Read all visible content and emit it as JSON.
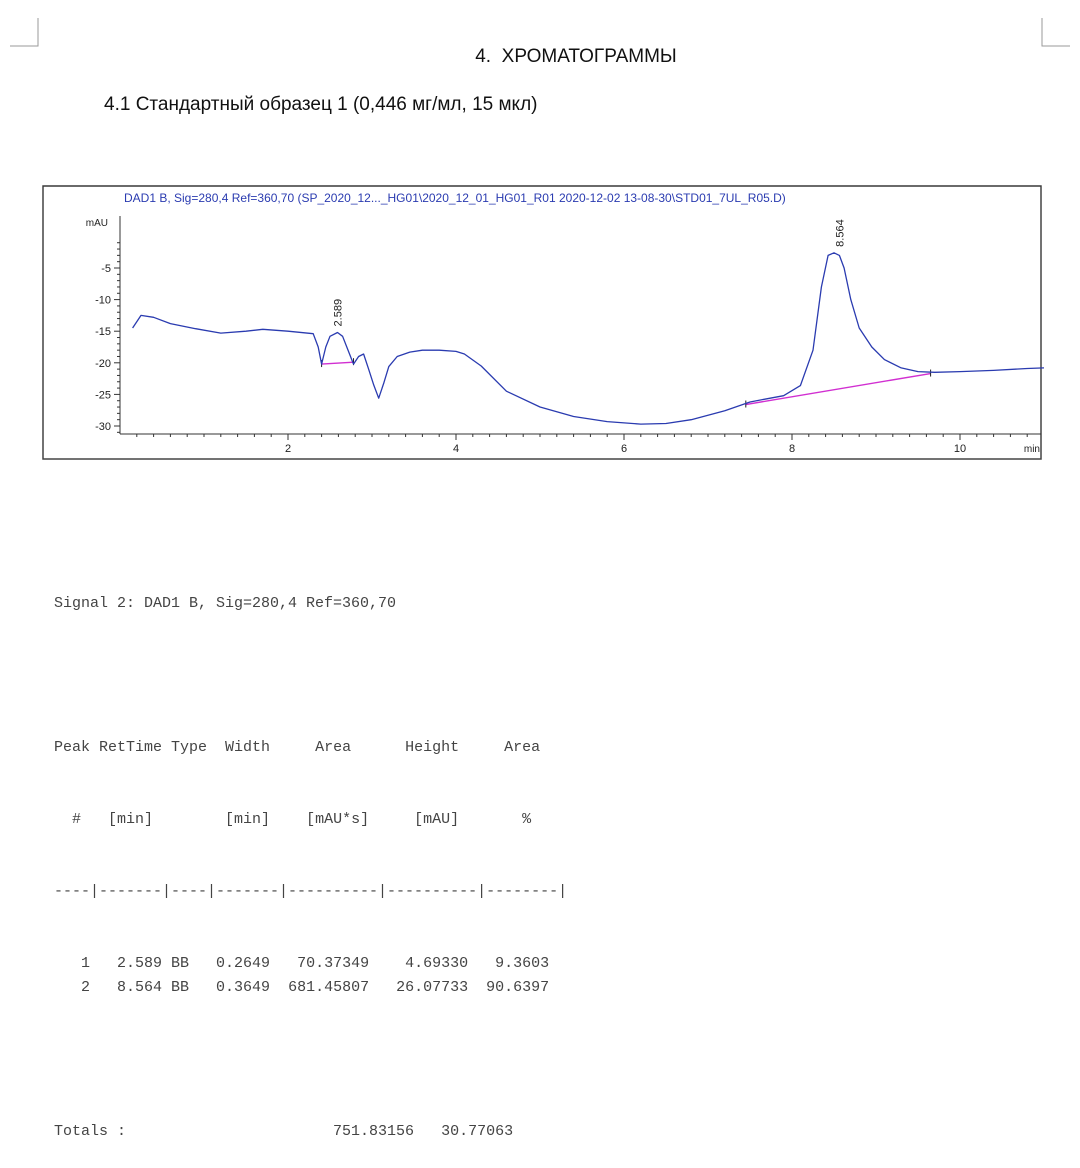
{
  "section": {
    "number": "4.",
    "title": "ХРОМАТОГРАММЫ",
    "subsection": "4.1 Стандартный образец 1 (0,446 мг/мл, 15 мкл)"
  },
  "chart_data": {
    "type": "line",
    "title": "DAD1 B, Sig=280,4 Ref=360,70 (SP_2020_12..._HG01\\2020_12_01_HG01_R01 2020-12-02 13-08-30\\STD01_7UL_R05.D)",
    "ylabel": "mAU",
    "xlabel": "min",
    "xlim": [
      0,
      11
    ],
    "ylim": [
      -31.5,
      -1
    ],
    "x_ticks": [
      2,
      4,
      6,
      8,
      10
    ],
    "y_ticks": [
      -5,
      -10,
      -15,
      -20,
      -25,
      -30
    ],
    "grid": false,
    "series": [
      {
        "color": "#2a3bb0",
        "x": [
          0.15,
          0.25,
          0.4,
          0.6,
          0.9,
          1.2,
          1.5,
          1.7,
          2.0,
          2.3,
          2.36,
          2.4,
          2.45,
          2.5,
          2.589,
          2.65,
          2.72,
          2.78,
          2.84,
          2.9,
          2.96,
          3.02,
          3.08,
          3.14,
          3.2,
          3.3,
          3.45,
          3.6,
          3.8,
          4.0,
          4.1,
          4.3,
          4.6,
          5.0,
          5.4,
          5.8,
          6.2,
          6.5,
          6.8,
          7.2,
          7.5,
          7.7,
          7.9,
          8.1,
          8.25,
          8.35,
          8.43,
          8.5,
          8.564,
          8.62,
          8.7,
          8.8,
          8.95,
          9.1,
          9.3,
          9.5,
          9.7,
          10.0,
          10.4,
          10.8,
          11.0
        ],
        "y": [
          -14.5,
          -12.5,
          -12.8,
          -13.8,
          -14.6,
          -15.3,
          -15.0,
          -14.7,
          -15.0,
          -15.4,
          -17.5,
          -20.2,
          -17.5,
          -15.8,
          -15.2,
          -15.8,
          -18.2,
          -20.2,
          -19.0,
          -18.6,
          -21.0,
          -23.5,
          -25.6,
          -23.2,
          -20.6,
          -19.0,
          -18.3,
          -18.0,
          -18.0,
          -18.2,
          -18.6,
          -20.5,
          -24.5,
          -27.0,
          -28.5,
          -29.3,
          -29.7,
          -29.6,
          -29.0,
          -27.6,
          -26.2,
          -25.7,
          -25.2,
          -23.6,
          -18.0,
          -8.0,
          -3.0,
          -2.6,
          -3.0,
          -5.0,
          -10.0,
          -14.5,
          -17.5,
          -19.5,
          -20.8,
          -21.4,
          -21.5,
          -21.4,
          -21.2,
          -20.9,
          -20.8
        ]
      }
    ],
    "baselines": [
      {
        "color": "#d12fd1",
        "x": [
          2.4,
          2.78
        ],
        "y": [
          -20.2,
          -19.9
        ]
      },
      {
        "color": "#d12fd1",
        "x": [
          7.45,
          9.65
        ],
        "y": [
          -26.6,
          -21.7
        ]
      }
    ],
    "peak_labels": [
      {
        "text": "2.589",
        "x": 2.589,
        "y": -15.2
      },
      {
        "text": "8.564",
        "x": 8.564,
        "y": -2.6
      }
    ]
  },
  "report": {
    "signal_line": "Signal 2: DAD1 B, Sig=280,4 Ref=360,70",
    "header1": [
      "Peak",
      "RetTime",
      "Type",
      "Width",
      "Area",
      "Height",
      "Area"
    ],
    "header2": [
      "#",
      "[min]",
      "",
      "[min]",
      "[mAU*s]",
      "[mAU]",
      "%"
    ],
    "separator": "----|-------|----|-------|----------|----------|--------|",
    "rows": [
      [
        "1",
        "2.589",
        "BB",
        "0.2649",
        "70.37349",
        "4.69330",
        "9.3603"
      ],
      [
        "2",
        "8.564",
        "BB",
        "0.3649",
        "681.45807",
        "26.07733",
        "90.6397"
      ]
    ],
    "totals_label": "Totals :",
    "totals_area": "751.83156",
    "totals_height": "30.77063"
  }
}
